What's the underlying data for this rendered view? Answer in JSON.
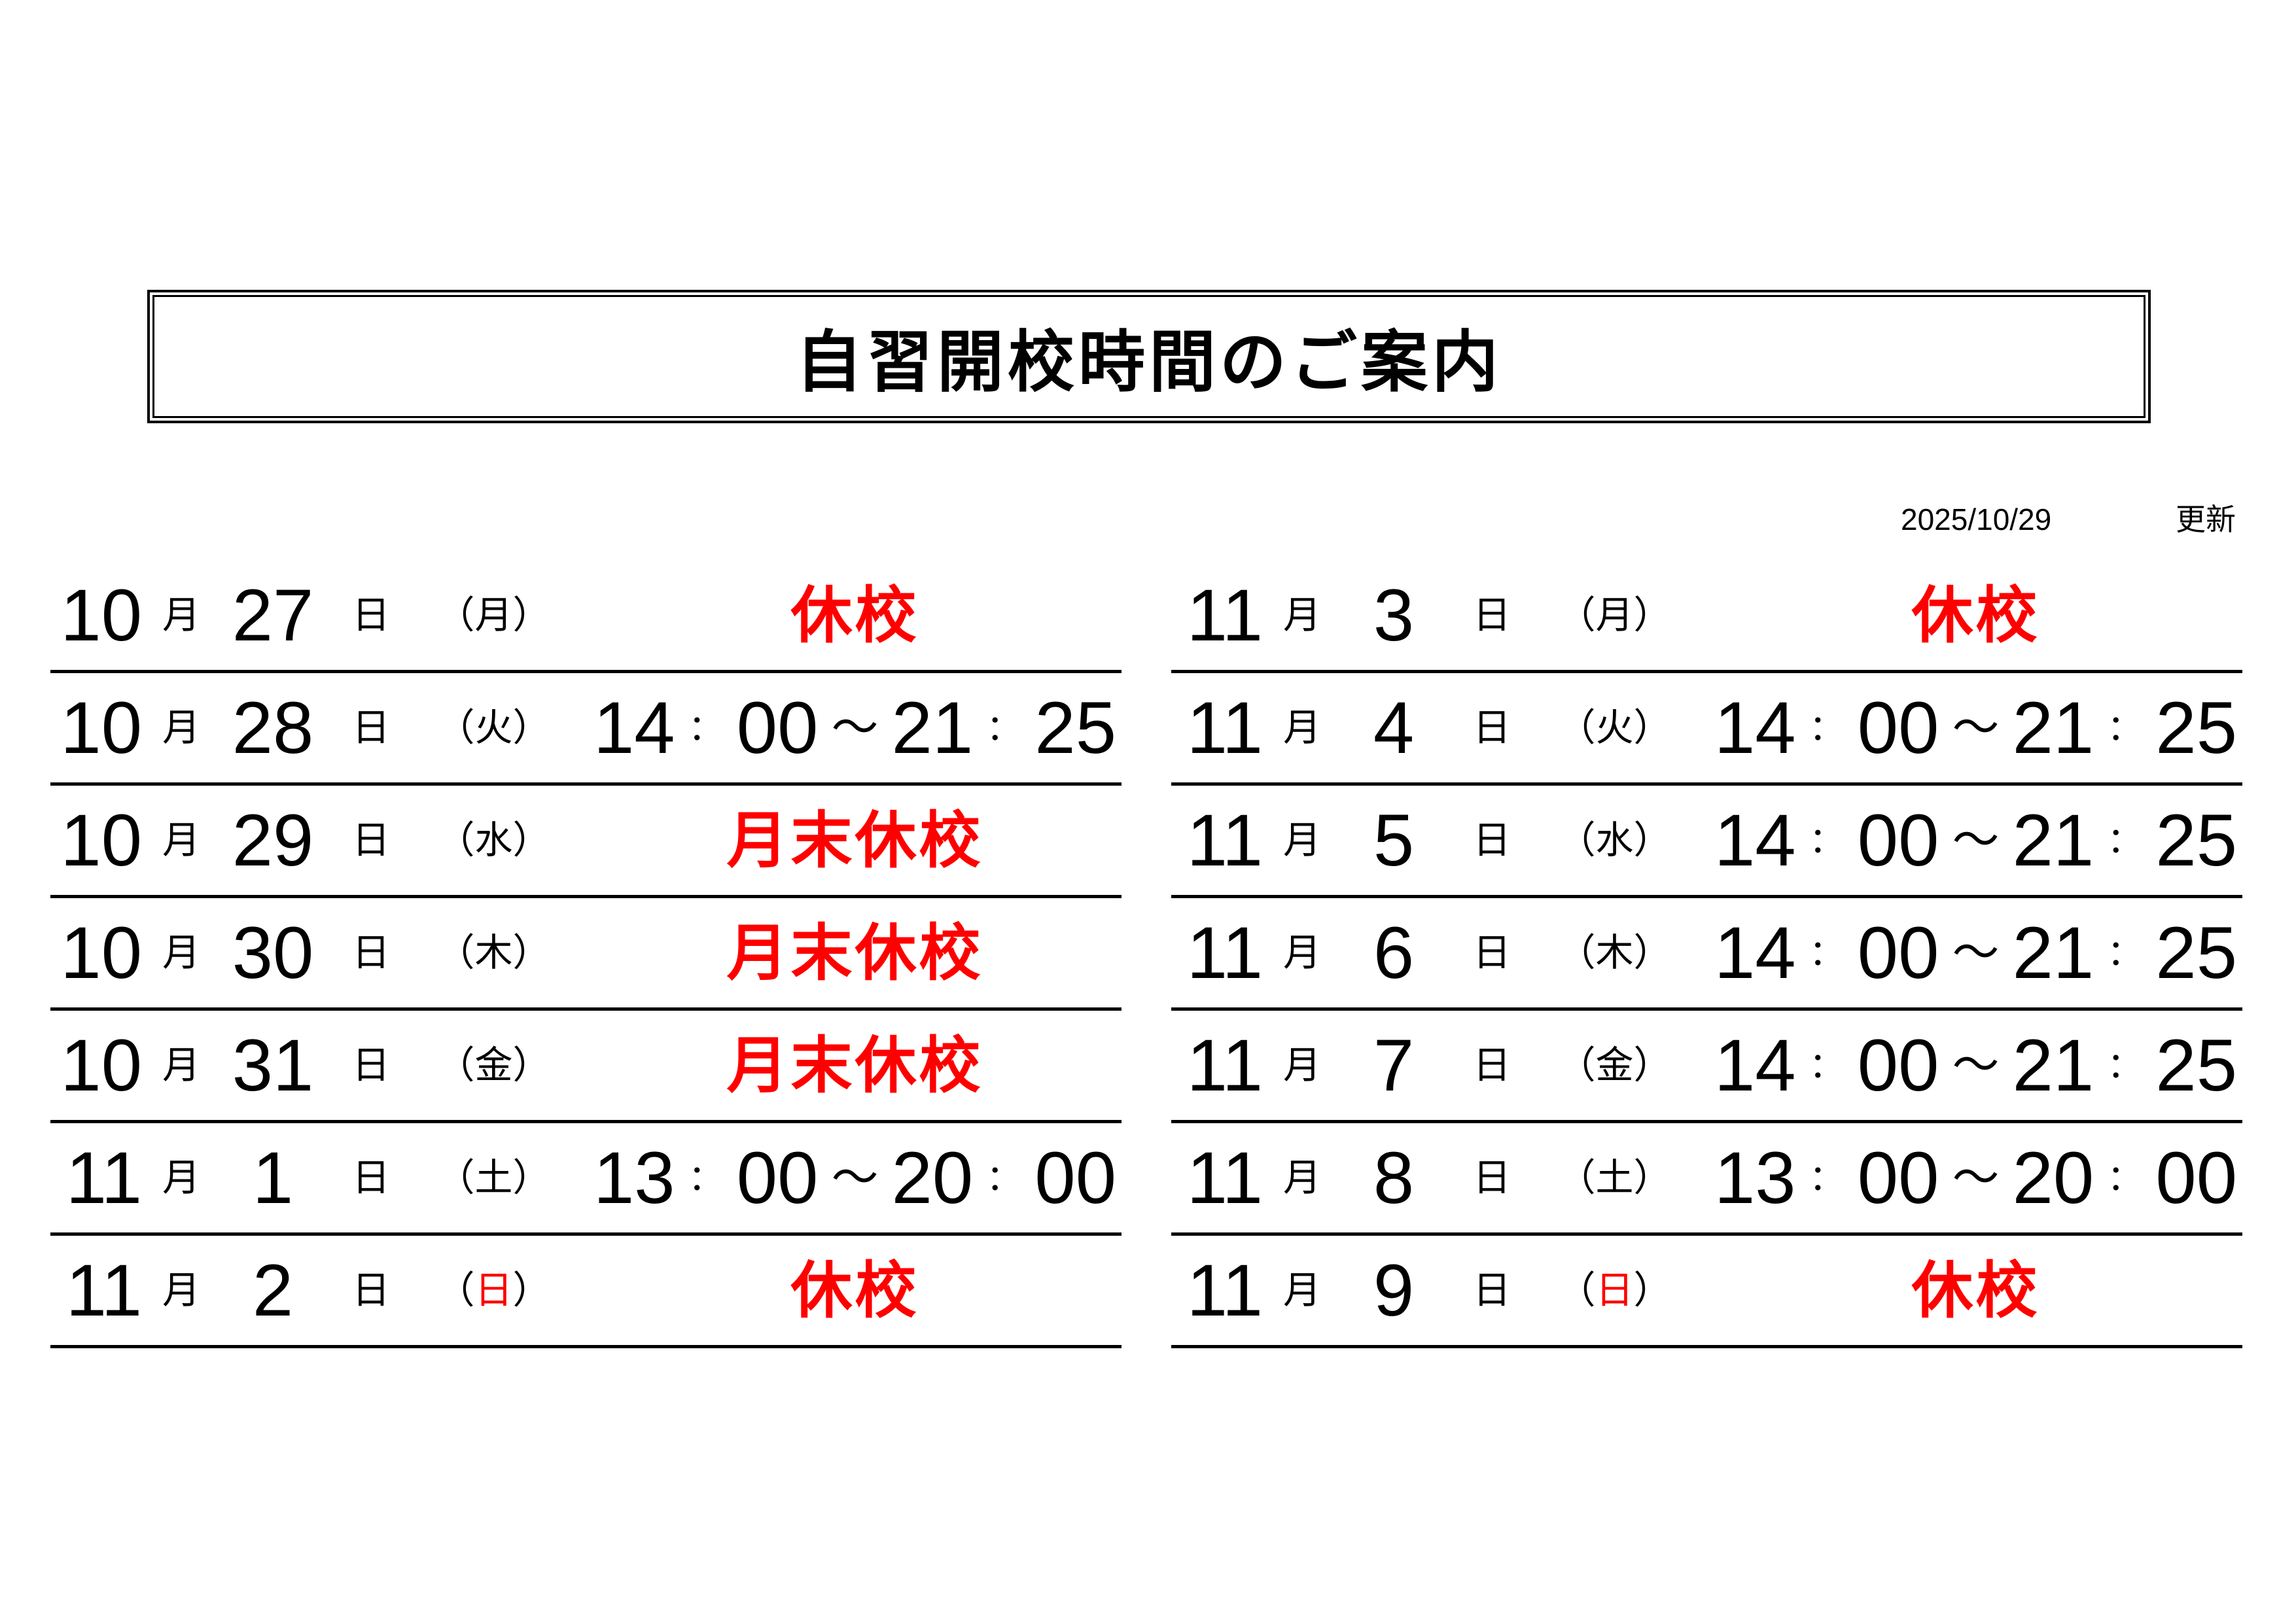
{
  "title": "自習開校時間のご案内",
  "updated": {
    "date": "2025/10/29",
    "label": "更新"
  },
  "labels": {
    "month_suffix": "月",
    "day_suffix": "日",
    "paren_open": "（",
    "paren_close": "）",
    "colon": "：",
    "tilde": "～"
  },
  "colors": {
    "text": "#000000",
    "closed_red": "#ff0000"
  },
  "columns": {
    "left": [
      {
        "month": "10",
        "day": "27",
        "weekday": "月",
        "weekday_red": false,
        "status": "休校"
      },
      {
        "month": "10",
        "day": "28",
        "weekday": "火",
        "weekday_red": false,
        "time": {
          "start_h": "14",
          "start_m": "00",
          "end_h": "21",
          "end_m": "25"
        }
      },
      {
        "month": "10",
        "day": "29",
        "weekday": "水",
        "weekday_red": false,
        "status": "月末休校"
      },
      {
        "month": "10",
        "day": "30",
        "weekday": "木",
        "weekday_red": false,
        "status": "月末休校"
      },
      {
        "month": "10",
        "day": "31",
        "weekday": "金",
        "weekday_red": false,
        "status": "月末休校"
      },
      {
        "month": "11",
        "day": "1",
        "weekday": "土",
        "weekday_red": false,
        "time": {
          "start_h": "13",
          "start_m": "00",
          "end_h": "20",
          "end_m": "00"
        }
      },
      {
        "month": "11",
        "day": "2",
        "weekday": "日",
        "weekday_red": true,
        "status": "休校"
      }
    ],
    "right": [
      {
        "month": "11",
        "day": "3",
        "weekday": "月",
        "weekday_red": false,
        "status": "休校"
      },
      {
        "month": "11",
        "day": "4",
        "weekday": "火",
        "weekday_red": false,
        "time": {
          "start_h": "14",
          "start_m": "00",
          "end_h": "21",
          "end_m": "25"
        }
      },
      {
        "month": "11",
        "day": "5",
        "weekday": "水",
        "weekday_red": false,
        "time": {
          "start_h": "14",
          "start_m": "00",
          "end_h": "21",
          "end_m": "25"
        }
      },
      {
        "month": "11",
        "day": "6",
        "weekday": "木",
        "weekday_red": false,
        "time": {
          "start_h": "14",
          "start_m": "00",
          "end_h": "21",
          "end_m": "25"
        }
      },
      {
        "month": "11",
        "day": "7",
        "weekday": "金",
        "weekday_red": false,
        "time": {
          "start_h": "14",
          "start_m": "00",
          "end_h": "21",
          "end_m": "25"
        }
      },
      {
        "month": "11",
        "day": "8",
        "weekday": "土",
        "weekday_red": false,
        "time": {
          "start_h": "13",
          "start_m": "00",
          "end_h": "20",
          "end_m": "00"
        }
      },
      {
        "month": "11",
        "day": "9",
        "weekday": "日",
        "weekday_red": true,
        "status": "休校"
      }
    ]
  }
}
